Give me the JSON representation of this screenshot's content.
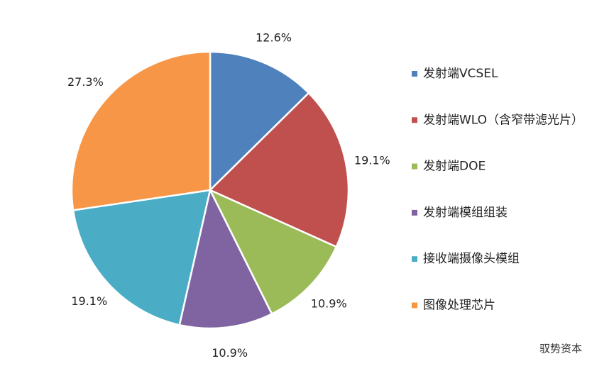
{
  "chart_data": {
    "type": "pie",
    "categories": [
      "发射端VCSEL",
      "发射端WLO（含窄带滤光片）",
      "发射端DOE",
      "发射端模组组装",
      "接收端摄像头模组",
      "图像处理芯片"
    ],
    "values": [
      12.6,
      19.1,
      10.9,
      10.9,
      19.1,
      27.3
    ],
    "value_labels": [
      "12.6%",
      "19.1%",
      "10.9%",
      "10.9%",
      "19.1%",
      "27.3%"
    ],
    "colors": [
      "#4f81bd",
      "#c0504d",
      "#9bbb59",
      "#8064a2",
      "#4bacc6",
      "#f79646"
    ],
    "legend": "right"
  },
  "watermark": "驭势资本"
}
